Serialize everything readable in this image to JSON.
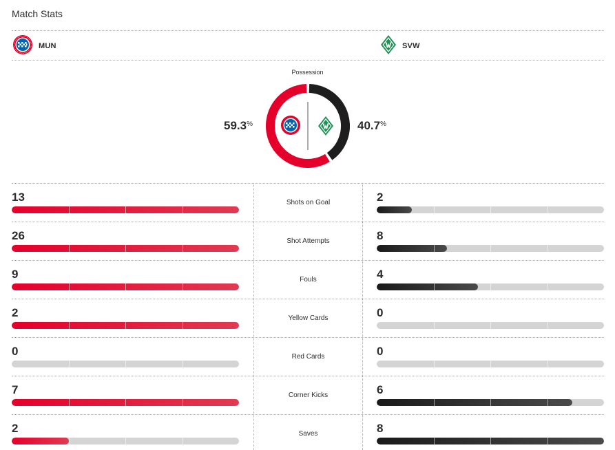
{
  "header": {
    "title": "Match Stats"
  },
  "teams": {
    "home": {
      "abbr": "MUN",
      "color": "#e4002b"
    },
    "away": {
      "abbr": "SVW",
      "color": "#1d9053"
    }
  },
  "possession": {
    "label": "Possession",
    "home_value": "59.3",
    "away_value": "40.7",
    "unit": "%",
    "home_percent": 59.3,
    "away_percent": 40.7
  },
  "stats": [
    {
      "label": "Shots on Goal",
      "home": "13",
      "away": "2",
      "home_fill": 1.0,
      "away_fill": 0.155
    },
    {
      "label": "Shot Attempts",
      "home": "26",
      "away": "8",
      "home_fill": 1.0,
      "away_fill": 0.31
    },
    {
      "label": "Fouls",
      "home": "9",
      "away": "4",
      "home_fill": 1.0,
      "away_fill": 0.445
    },
    {
      "label": "Yellow Cards",
      "home": "2",
      "away": "0",
      "home_fill": 1.0,
      "away_fill": 0.0
    },
    {
      "label": "Red Cards",
      "home": "0",
      "away": "0",
      "home_fill": 0.0,
      "away_fill": 0.0
    },
    {
      "label": "Corner Kicks",
      "home": "7",
      "away": "6",
      "home_fill": 1.0,
      "away_fill": 0.86
    },
    {
      "label": "Saves",
      "home": "2",
      "away": "8",
      "home_fill": 0.25,
      "away_fill": 1.0
    }
  ]
}
